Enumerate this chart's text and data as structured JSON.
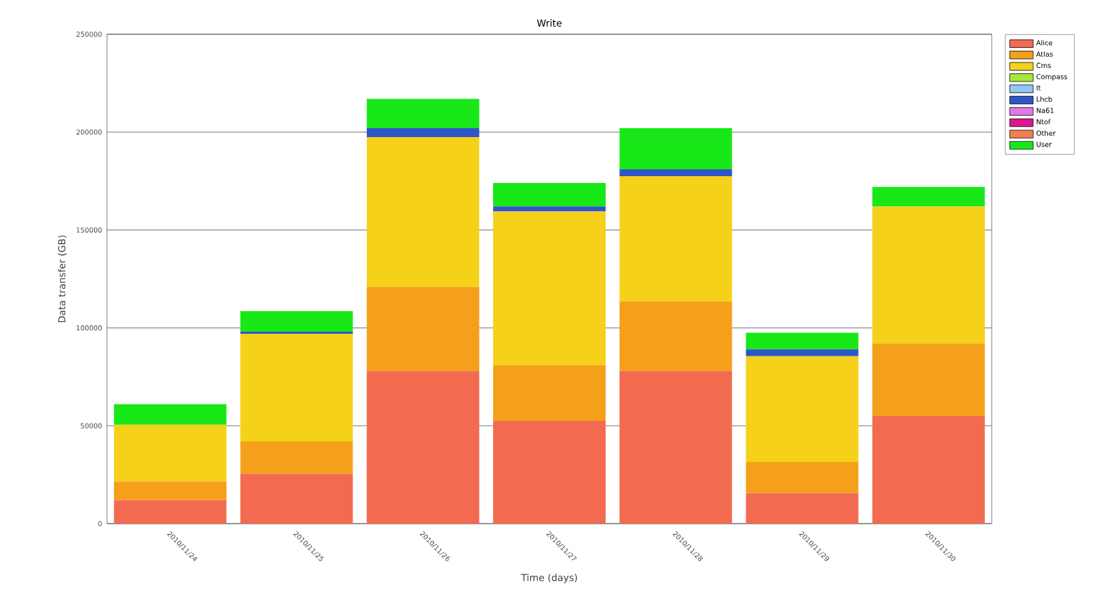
{
  "chart_data": {
    "type": "bar",
    "title": "Write",
    "xlabel": "Time (days)",
    "ylabel": "Data transfer (GB)",
    "categories": [
      "2010/11/24",
      "2010/11/25",
      "2010/11/26",
      "2010/11/27",
      "2010/11/28",
      "2010/11/29",
      "2010/11/30"
    ],
    "stacked": true,
    "grid": "y",
    "legend": "right",
    "ylim": [
      0,
      250000
    ],
    "yticks": [
      0,
      50000,
      100000,
      150000,
      200000,
      250000
    ],
    "series": [
      {
        "name": "Alice",
        "color": "#f26b50",
        "values": [
          12000,
          25500,
          78000,
          52500,
          78000,
          15500,
          55000
        ]
      },
      {
        "name": "Atlas",
        "color": "#f5a01a",
        "values": [
          9500,
          16500,
          43000,
          28500,
          35500,
          16000,
          37000
        ]
      },
      {
        "name": "Cms",
        "color": "#f5d11a",
        "values": [
          29000,
          55000,
          76500,
          78500,
          64000,
          54000,
          70000
        ]
      },
      {
        "name": "Compass",
        "color": "#a6e83a",
        "values": [
          null,
          null,
          null,
          null,
          null,
          null,
          null
        ]
      },
      {
        "name": "It",
        "color": "#8fc8f0",
        "values": [
          null,
          null,
          null,
          null,
          null,
          null,
          null
        ]
      },
      {
        "name": "Lhcb",
        "color": "#2e56c8",
        "values": [
          0,
          1000,
          4500,
          2500,
          3500,
          3500,
          0
        ]
      },
      {
        "name": "Na61",
        "color": "#e07ae8",
        "values": [
          null,
          null,
          null,
          null,
          null,
          null,
          null
        ]
      },
      {
        "name": "Ntof",
        "color": "#e0148c",
        "values": [
          null,
          null,
          null,
          null,
          null,
          null,
          null
        ]
      },
      {
        "name": "Other",
        "color": "#f08050",
        "values": [
          null,
          null,
          null,
          null,
          null,
          null,
          null
        ]
      },
      {
        "name": "User",
        "color": "#18e818",
        "values": [
          10500,
          10500,
          15000,
          12000,
          21000,
          8500,
          10000
        ]
      }
    ]
  }
}
